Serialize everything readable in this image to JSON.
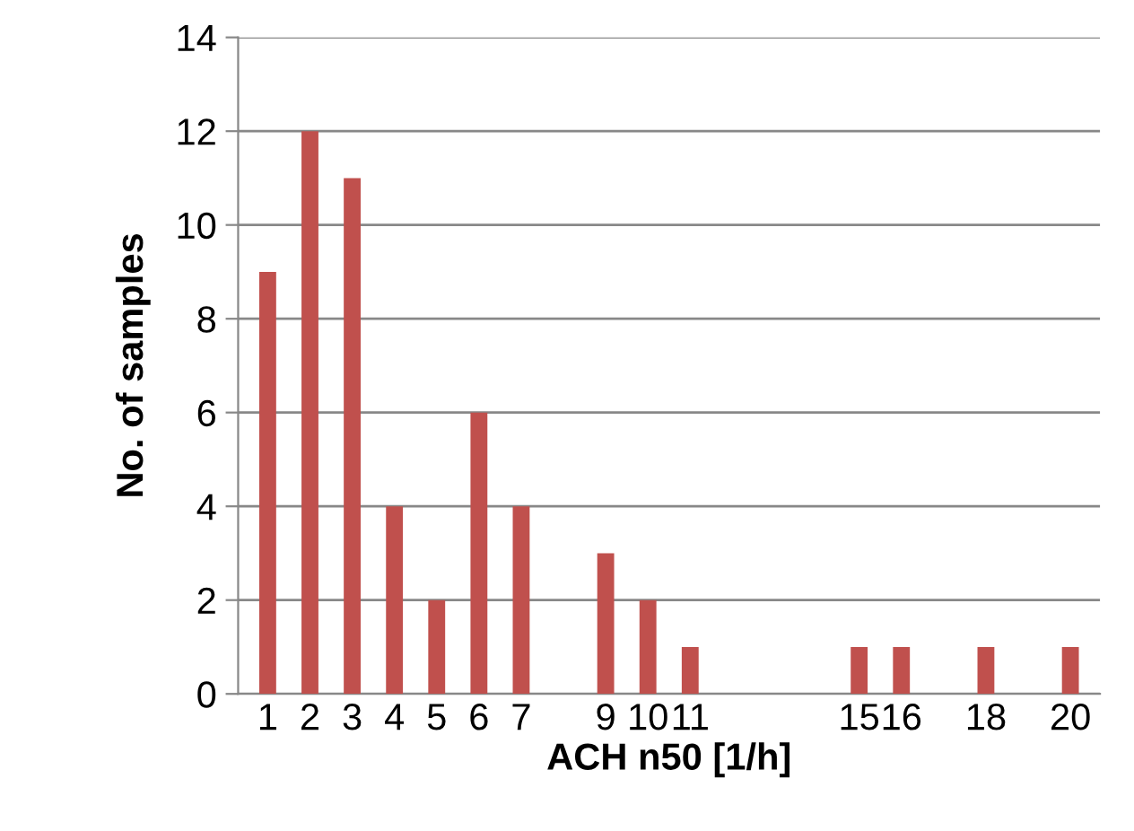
{
  "chart_data": {
    "type": "bar",
    "xlabel": "ACH n50 [1/h]",
    "ylabel": "No. of samples",
    "categories": [
      "1",
      "2",
      "3",
      "4",
      "5",
      "6",
      "7",
      null,
      "9",
      "10",
      "11",
      null,
      null,
      null,
      "15",
      "16",
      null,
      "18",
      null,
      "20"
    ],
    "values": [
      9,
      12,
      11,
      4,
      2,
      6,
      4,
      null,
      3,
      2,
      1,
      null,
      null,
      null,
      1,
      1,
      null,
      1,
      null,
      1
    ],
    "color": "#c0504d",
    "ylim": [
      0,
      14
    ],
    "yticks": [
      0,
      2,
      4,
      6,
      8,
      10,
      12,
      14
    ],
    "grid": "y",
    "legend": false
  }
}
